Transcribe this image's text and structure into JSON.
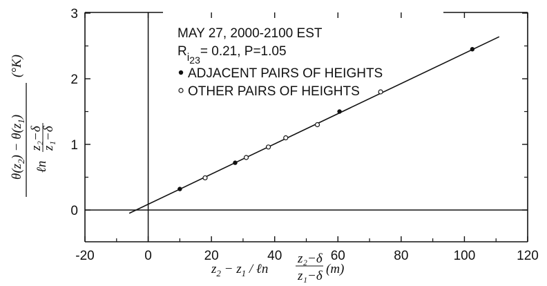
{
  "chart_data": {
    "type": "scatter",
    "title": "",
    "xlabel": "z₂ − z₁ / ℓn [(z₂−δ)/(z₁−δ)] (m)",
    "ylabel": "[θ(z₂) − θ(z₁)] / ℓn [(z₂−δ)/(z₁−δ)] (°K)",
    "xlim": [
      -20,
      120
    ],
    "ylim": [
      -0.3,
      3
    ],
    "x_ticks": [
      -20,
      0,
      20,
      40,
      60,
      80,
      100,
      120
    ],
    "y_ticks": [
      0,
      1,
      2,
      3
    ],
    "x_tick_labels": [
      "-20",
      "0",
      "20",
      "40",
      "60",
      "80",
      "100",
      "120"
    ],
    "y_tick_labels": [
      "0",
      "1",
      "2",
      "3"
    ],
    "grid": false,
    "legend_position": "top-left",
    "annotation": {
      "line1": "MAY 27, 2000-2100 EST",
      "ri_main": "R",
      "ri_sub": "i",
      "ri_subsub": "23",
      "ri_rest": "= 0.21, P=1.05"
    },
    "series": [
      {
        "name": "ADJACENT PAIRS OF HEIGHTS",
        "marker": "filled-circle",
        "points": [
          [
            10,
            0.32
          ],
          [
            27.5,
            0.72
          ],
          [
            60.5,
            1.5
          ],
          [
            102.5,
            2.45
          ]
        ]
      },
      {
        "name": "OTHER PAIRS OF HEIGHTS",
        "marker": "open-circle",
        "points": [
          [
            18,
            0.49
          ],
          [
            31,
            0.8
          ],
          [
            38,
            0.96
          ],
          [
            43.5,
            1.1
          ],
          [
            53.5,
            1.3
          ],
          [
            73.5,
            1.8
          ]
        ]
      }
    ],
    "fit_line": {
      "x": [
        -6,
        111
      ],
      "y": [
        -0.05,
        2.64
      ]
    },
    "reference_lines": {
      "x0": true,
      "y0": true
    }
  }
}
